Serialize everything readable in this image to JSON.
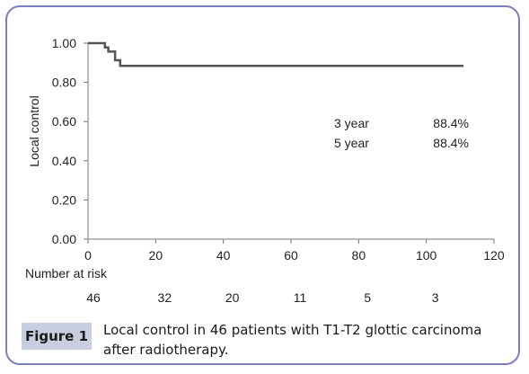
{
  "chart_data": {
    "type": "line",
    "ylabel": "Local control",
    "xlim": [
      0,
      120
    ],
    "ylim": [
      0,
      1
    ],
    "x_ticks": [
      0,
      20,
      40,
      60,
      80,
      100,
      120
    ],
    "y_ticks": [
      "0.00",
      "0.20",
      "0.40",
      "0.60",
      "0.80",
      "1.00"
    ],
    "series": [
      {
        "line_color": "#555555",
        "steps": [
          {
            "x": 0,
            "y": 1.0
          },
          {
            "x": 5,
            "y": 0.978
          },
          {
            "x": 6,
            "y": 0.957
          },
          {
            "x": 8,
            "y": 0.913
          },
          {
            "x": 9.5,
            "y": 0.884
          },
          {
            "x": 111,
            "y": 0.884
          }
        ]
      }
    ],
    "annotations": [
      {
        "label": "3 year",
        "value": "88.4%"
      },
      {
        "label": "5 year",
        "value": "88.4%"
      }
    ],
    "risk_table": {
      "title": "Number at risk",
      "values": [
        "46",
        "32",
        "20",
        "11",
        "5",
        "3"
      ]
    }
  },
  "caption": {
    "label": "Figure 1",
    "text": "Local control in 46 patients with T1-T2 glottic carcinoma after radiotherapy."
  },
  "colors": {
    "frame": "#7b7fc0",
    "caption_label_bg": "#c9cde0"
  }
}
